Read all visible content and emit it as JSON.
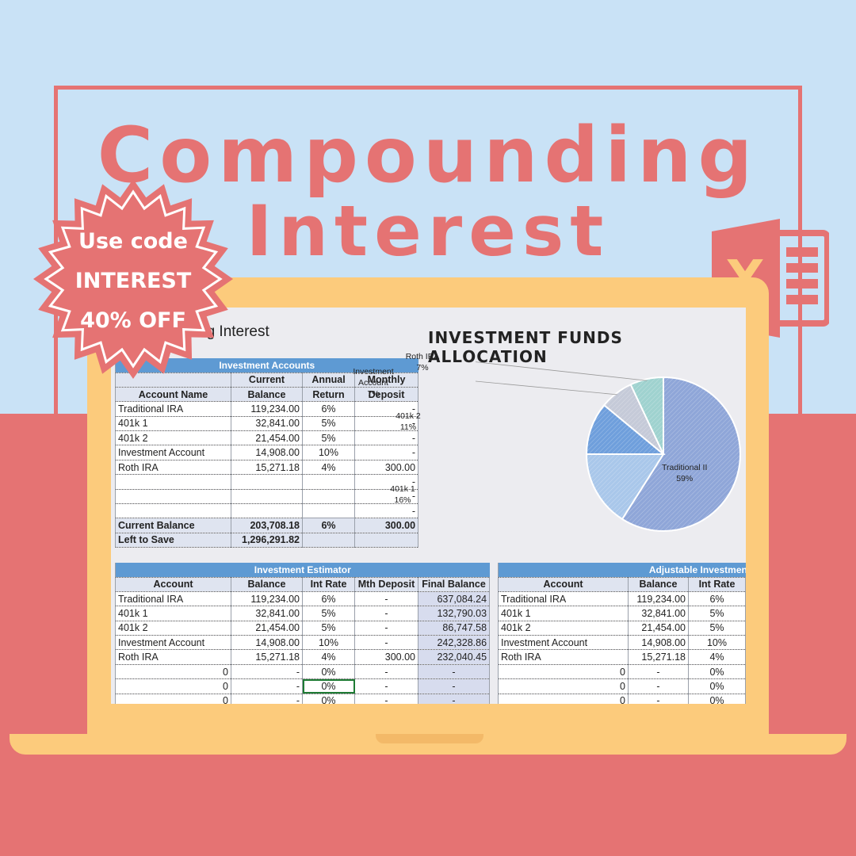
{
  "banner": {
    "title_line1": "Compounding",
    "title_line2": "Interest"
  },
  "promo": {
    "line1": "Use code",
    "line2": "INTEREST",
    "line3": "40% OFF"
  },
  "icon": {
    "name": "excel-icon",
    "letter": "X"
  },
  "sheet": {
    "title": "ng Interest",
    "chart_title": "INVESTMENT FUNDS ALLOCATION"
  },
  "accounts_table": {
    "band": "Investment Accounts",
    "headers": {
      "name_top": "",
      "name": "Account Name",
      "balance_top": "Current",
      "balance": "Balance",
      "return_top": "Annual",
      "return": "Return",
      "deposit_top": "Monthly",
      "deposit": "Deposit"
    },
    "rows": [
      [
        "Traditional IRA",
        "119,234.00",
        "6%",
        "-"
      ],
      [
        "401k 1",
        "32,841.00",
        "5%",
        "-"
      ],
      [
        "401k 2",
        "21,454.00",
        "5%",
        "-"
      ],
      [
        "Investment Account",
        "14,908.00",
        "10%",
        "-"
      ],
      [
        "Roth IRA",
        "15,271.18",
        "4%",
        "300.00"
      ],
      [
        "",
        "",
        "",
        "-"
      ],
      [
        "",
        "",
        "",
        "-"
      ],
      [
        "",
        "",
        "",
        "-"
      ]
    ],
    "current_balance": [
      "Current Balance",
      "203,708.18",
      "6%",
      "300.00"
    ],
    "left_to_save": [
      "Left to Save",
      "1,296,291.82",
      "",
      ""
    ]
  },
  "estimator_table": {
    "band": "Investment Estimator",
    "headers": [
      "Account",
      "Balance",
      "Int Rate",
      "Mth Deposit",
      "Final Balance"
    ],
    "rows": [
      [
        "Traditional IRA",
        "119,234.00",
        "6%",
        "-",
        "637,084.24"
      ],
      [
        "401k 1",
        "32,841.00",
        "5%",
        "-",
        "132,790.03"
      ],
      [
        "401k 2",
        "21,454.00",
        "5%",
        "-",
        "86,747.58"
      ],
      [
        "Investment Account",
        "14,908.00",
        "10%",
        "-",
        "242,328.86"
      ],
      [
        "Roth IRA",
        "15,271.18",
        "4%",
        "300.00",
        "232,040.45"
      ],
      [
        "0",
        "-",
        "0%",
        "-",
        "-"
      ],
      [
        "0",
        "-",
        "0%",
        "-",
        "-"
      ],
      [
        "0",
        "-",
        "0%",
        "-",
        "-"
      ]
    ]
  },
  "adjustable_table": {
    "band": "Adjustable Investment Ca",
    "headers": [
      "Account",
      "Balance",
      "Int Rate"
    ],
    "rows": [
      [
        "Traditional IRA",
        "119,234.00",
        "6%"
      ],
      [
        "401k 1",
        "32,841.00",
        "5%"
      ],
      [
        "401k 2",
        "21,454.00",
        "5%"
      ],
      [
        "Investment Account",
        "14,908.00",
        "10%"
      ],
      [
        "Roth IRA",
        "15,271.18",
        "4%"
      ],
      [
        "0",
        "-",
        "0%"
      ],
      [
        "0",
        "-",
        "0%"
      ],
      [
        "0",
        "-",
        "0%"
      ]
    ]
  },
  "chart_data": {
    "type": "pie",
    "title": "INVESTMENT FUNDS ALLOCATION",
    "slices": [
      {
        "name": "Traditional II",
        "label": "59%",
        "value": 59,
        "color": "#8fa6d8"
      },
      {
        "name": "401k 1",
        "label": "16%",
        "value": 16,
        "color": "#a9c7ea"
      },
      {
        "name": "401k 2",
        "label": "11%",
        "value": 11,
        "color": "#6f9fdc"
      },
      {
        "name": "Investment Account",
        "label": "7%",
        "value": 7,
        "color": "#c5cad8"
      },
      {
        "name": "Roth IRA",
        "label": "7%",
        "value": 7,
        "color": "#9fd2cf"
      }
    ]
  },
  "colors": {
    "accent": "#e57373",
    "sky": "#c9e2f6",
    "laptop": "#fccb7c",
    "table_band": "#5e9ad3",
    "excel_green": "#e57373"
  }
}
